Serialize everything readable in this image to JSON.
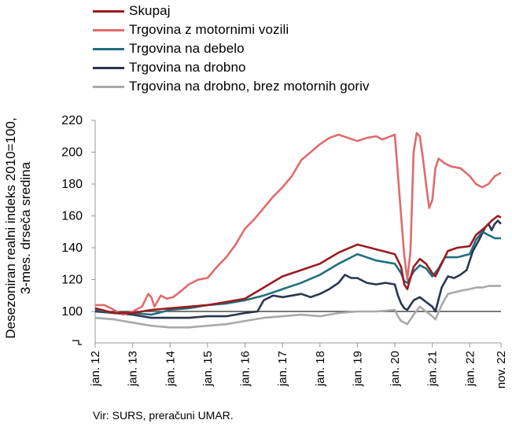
{
  "chart_data": {
    "type": "line",
    "ylabel_lines": [
      "Desezoniran realni indeks 2010=100,",
      "3-mes. drseča sredina"
    ],
    "source": "Vir: SURS, preračuni UMAR.",
    "ylim": [
      90,
      220
    ],
    "yticks": [
      220,
      200,
      180,
      160,
      140,
      120,
      100
    ],
    "xticks": [
      "jan. 12",
      "jan. 13",
      "jan. 14",
      "jan. 15",
      "jan. 16",
      "jan. 17",
      "jan. 18",
      "jan. 19",
      "jan. 20",
      "jan. 21",
      "jan. 22",
      "nov. 22"
    ],
    "xrange_months": [
      0,
      130
    ],
    "reference_line": 100,
    "legend_position": "top-left",
    "series": [
      {
        "name": "Skupaj",
        "color": "#9b1b1f",
        "points": [
          [
            0,
            102
          ],
          [
            6,
            99
          ],
          [
            12,
            99
          ],
          [
            18,
            101
          ],
          [
            24,
            102
          ],
          [
            30,
            103
          ],
          [
            36,
            104
          ],
          [
            42,
            106
          ],
          [
            48,
            108
          ],
          [
            54,
            115
          ],
          [
            60,
            122
          ],
          [
            66,
            126
          ],
          [
            72,
            130
          ],
          [
            78,
            137
          ],
          [
            84,
            142
          ],
          [
            90,
            139
          ],
          [
            96,
            136
          ],
          [
            98,
            128
          ],
          [
            99,
            117
          ],
          [
            100,
            114
          ],
          [
            102,
            128
          ],
          [
            104,
            133
          ],
          [
            106,
            130
          ],
          [
            108,
            124
          ],
          [
            109,
            122
          ],
          [
            111,
            130
          ],
          [
            113,
            138
          ],
          [
            116,
            140
          ],
          [
            120,
            141
          ],
          [
            122,
            148
          ],
          [
            125,
            153
          ],
          [
            127,
            157
          ],
          [
            129,
            160
          ],
          [
            130,
            159
          ]
        ]
      },
      {
        "name": "Trgovina z motornimi vozili",
        "color": "#e06b6b",
        "points": [
          [
            0,
            104
          ],
          [
            3,
            104
          ],
          [
            6,
            101
          ],
          [
            9,
            98
          ],
          [
            12,
            100
          ],
          [
            15,
            103
          ],
          [
            17,
            111
          ],
          [
            18,
            109
          ],
          [
            19,
            103
          ],
          [
            21,
            110
          ],
          [
            23,
            108
          ],
          [
            25,
            109
          ],
          [
            27,
            112
          ],
          [
            30,
            117
          ],
          [
            33,
            120
          ],
          [
            36,
            121
          ],
          [
            39,
            128
          ],
          [
            42,
            134
          ],
          [
            45,
            142
          ],
          [
            48,
            152
          ],
          [
            51,
            158
          ],
          [
            54,
            165
          ],
          [
            57,
            172
          ],
          [
            60,
            178
          ],
          [
            63,
            185
          ],
          [
            66,
            195
          ],
          [
            69,
            200
          ],
          [
            72,
            205
          ],
          [
            75,
            209
          ],
          [
            78,
            211
          ],
          [
            81,
            209
          ],
          [
            84,
            207
          ],
          [
            87,
            209
          ],
          [
            90,
            210
          ],
          [
            92,
            208
          ],
          [
            96,
            211
          ],
          [
            98,
            160
          ],
          [
            99,
            135
          ],
          [
            100,
            120
          ],
          [
            101,
            138
          ],
          [
            102,
            200
          ],
          [
            103,
            212
          ],
          [
            104,
            210
          ],
          [
            105,
            196
          ],
          [
            106,
            180
          ],
          [
            107,
            165
          ],
          [
            108,
            170
          ],
          [
            109,
            190
          ],
          [
            110,
            196
          ],
          [
            112,
            193
          ],
          [
            114,
            191
          ],
          [
            117,
            190
          ],
          [
            120,
            185
          ],
          [
            122,
            180
          ],
          [
            124,
            178
          ],
          [
            126,
            180
          ],
          [
            128,
            185
          ],
          [
            130,
            187
          ]
        ]
      },
      {
        "name": "Trgovina na debelo",
        "color": "#1f6f7f",
        "points": [
          [
            0,
            101
          ],
          [
            6,
            99
          ],
          [
            12,
            99
          ],
          [
            18,
            98
          ],
          [
            24,
            101
          ],
          [
            30,
            102
          ],
          [
            36,
            104
          ],
          [
            42,
            105
          ],
          [
            48,
            107
          ],
          [
            54,
            110
          ],
          [
            60,
            114
          ],
          [
            66,
            118
          ],
          [
            72,
            123
          ],
          [
            78,
            130
          ],
          [
            84,
            136
          ],
          [
            90,
            132
          ],
          [
            96,
            130
          ],
          [
            98,
            124
          ],
          [
            99,
            119
          ],
          [
            100,
            118
          ],
          [
            102,
            125
          ],
          [
            104,
            129
          ],
          [
            106,
            127
          ],
          [
            108,
            122
          ],
          [
            110,
            127
          ],
          [
            112,
            134
          ],
          [
            116,
            134
          ],
          [
            120,
            136
          ],
          [
            122,
            145
          ],
          [
            124,
            150
          ],
          [
            126,
            148
          ],
          [
            128,
            146
          ],
          [
            130,
            146
          ]
        ]
      },
      {
        "name": "Trgovina na drobno",
        "color": "#2a3550",
        "points": [
          [
            0,
            100
          ],
          [
            6,
            99
          ],
          [
            12,
            98
          ],
          [
            18,
            96
          ],
          [
            24,
            96
          ],
          [
            30,
            96
          ],
          [
            36,
            97
          ],
          [
            42,
            97
          ],
          [
            48,
            99
          ],
          [
            52,
            100
          ],
          [
            54,
            107
          ],
          [
            57,
            110
          ],
          [
            60,
            109
          ],
          [
            63,
            110
          ],
          [
            66,
            111
          ],
          [
            69,
            109
          ],
          [
            72,
            111
          ],
          [
            75,
            114
          ],
          [
            78,
            118
          ],
          [
            80,
            123
          ],
          [
            82,
            121
          ],
          [
            84,
            121
          ],
          [
            87,
            118
          ],
          [
            90,
            117
          ],
          [
            93,
            118
          ],
          [
            96,
            117
          ],
          [
            97,
            110
          ],
          [
            98,
            105
          ],
          [
            99,
            102
          ],
          [
            100,
            101
          ],
          [
            102,
            107
          ],
          [
            104,
            109
          ],
          [
            106,
            106
          ],
          [
            108,
            103
          ],
          [
            109,
            100
          ],
          [
            111,
            115
          ],
          [
            113,
            122
          ],
          [
            115,
            121
          ],
          [
            117,
            123
          ],
          [
            119,
            126
          ],
          [
            121,
            138
          ],
          [
            123,
            145
          ],
          [
            125,
            153
          ],
          [
            126,
            155
          ],
          [
            127,
            151
          ],
          [
            128,
            155
          ],
          [
            129,
            157
          ],
          [
            130,
            155
          ]
        ]
      },
      {
        "name": "Trgovina na drobno, brez motornih goriv",
        "color": "#a9a9a9",
        "points": [
          [
            0,
            96
          ],
          [
            6,
            95
          ],
          [
            12,
            93
          ],
          [
            18,
            91
          ],
          [
            24,
            90
          ],
          [
            30,
            90
          ],
          [
            36,
            91
          ],
          [
            42,
            92
          ],
          [
            48,
            94
          ],
          [
            54,
            96
          ],
          [
            60,
            97
          ],
          [
            66,
            98
          ],
          [
            72,
            97
          ],
          [
            78,
            99
          ],
          [
            84,
            100
          ],
          [
            90,
            100
          ],
          [
            96,
            101
          ],
          [
            97,
            97
          ],
          [
            98,
            94
          ],
          [
            99,
            93
          ],
          [
            100,
            92
          ],
          [
            102,
            98
          ],
          [
            104,
            103
          ],
          [
            106,
            100
          ],
          [
            108,
            97
          ],
          [
            109,
            95
          ],
          [
            111,
            104
          ],
          [
            113,
            111
          ],
          [
            117,
            113
          ],
          [
            120,
            114
          ],
          [
            122,
            115
          ],
          [
            124,
            115
          ],
          [
            126,
            116
          ],
          [
            128,
            116
          ],
          [
            130,
            116
          ]
        ]
      }
    ]
  }
}
